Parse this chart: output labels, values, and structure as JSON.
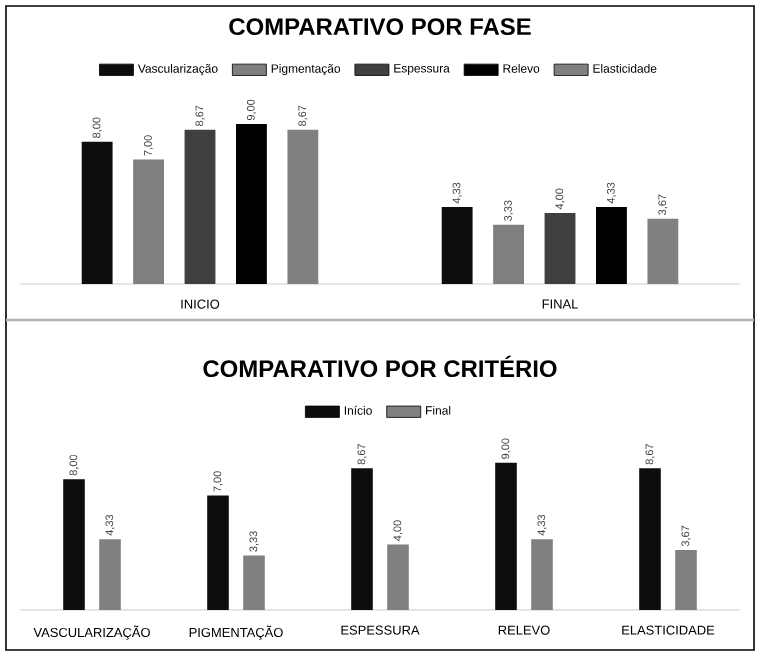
{
  "chart_data": [
    {
      "type": "bar",
      "title": "COMPARATIVO POR FASE",
      "categories": [
        "INICIO",
        "FINAL"
      ],
      "legend": "top",
      "grid": false,
      "series": [
        {
          "name": "Vascularização",
          "color": "#0d0d0d",
          "values": [
            8.0,
            4.33
          ],
          "value_labels": [
            "8,00",
            "4,33"
          ]
        },
        {
          "name": "Pigmentação",
          "color": "#7f7f7f",
          "values": [
            7.0,
            3.33
          ],
          "value_labels": [
            "7,00",
            "3,33"
          ]
        },
        {
          "name": "Espessura",
          "color": "#404040",
          "values": [
            8.67,
            4.0
          ],
          "value_labels": [
            "8,67",
            "4,00"
          ]
        },
        {
          "name": "Relevo",
          "color": "#000000",
          "values": [
            9.0,
            4.33
          ],
          "value_labels": [
            "9,00",
            "4,33"
          ]
        },
        {
          "name": "Elasticidade",
          "color": "#808080",
          "values": [
            8.67,
            3.67
          ],
          "value_labels": [
            "8,67",
            "3,67"
          ]
        }
      ]
    },
    {
      "type": "bar",
      "title": "COMPARATIVO POR CRITÉRIO",
      "categories": [
        "VASCULARIZAÇÃO",
        "PIGMENTAÇÃO",
        "ESPESSURA",
        "RELEVO",
        "ELASTICIDADE"
      ],
      "legend": "top",
      "grid": false,
      "series": [
        {
          "name": "Início",
          "color": "#0d0d0d",
          "values": [
            8.0,
            7.0,
            8.67,
            9.0,
            8.67
          ],
          "value_labels": [
            "8,00",
            "7,00",
            "8,67",
            "9,00",
            "8,67"
          ]
        },
        {
          "name": "Final",
          "color": "#808080",
          "values": [
            4.33,
            3.33,
            4.0,
            4.33,
            3.67
          ],
          "value_labels": [
            "4,33",
            "3,33",
            "4,00",
            "4,33",
            "3,67"
          ]
        }
      ]
    }
  ]
}
